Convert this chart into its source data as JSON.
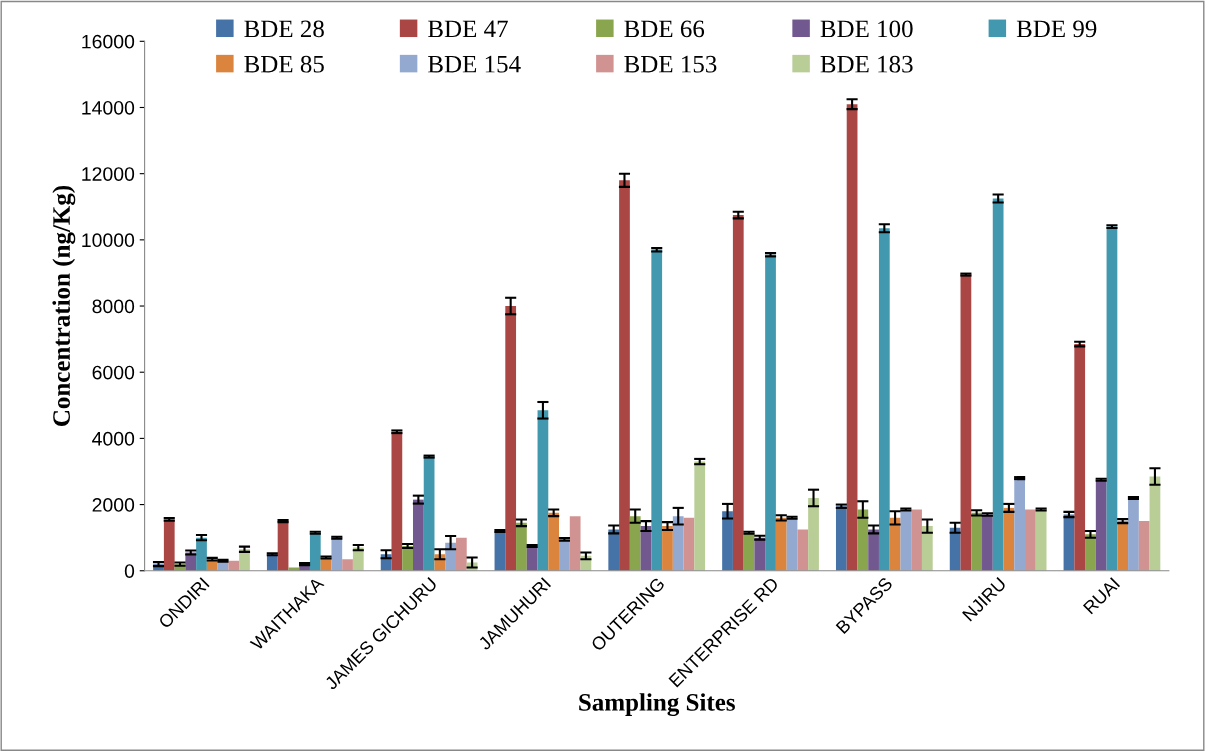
{
  "chart_data": {
    "type": "bar",
    "xlabel": "Sampling Sites",
    "ylabel": "Concentration (ng/Kg)",
    "categories": [
      "ONDIRI",
      "WAITHAKA",
      "JAMES GICHURU",
      "JAMUHURI",
      "OUTERING",
      "ENTERPRISE RD",
      "BYPASS",
      "NJIRU",
      "RUAI"
    ],
    "ylim": [
      0,
      16000
    ],
    "yticks": [
      0,
      2000,
      4000,
      6000,
      8000,
      10000,
      12000,
      14000,
      16000
    ],
    "grid": false,
    "legend": "top",
    "series": [
      {
        "name": "BDE 28",
        "color": "#4572a7",
        "values": [
          200,
          500,
          500,
          1200,
          1250,
          1800,
          1950,
          1300,
          1700
        ],
        "errors": [
          60,
          30,
          120,
          30,
          120,
          220,
          50,
          150,
          80
        ]
      },
      {
        "name": "BDE 47",
        "color": "#aa4643",
        "values": [
          1550,
          1500,
          4200,
          8000,
          11800,
          10750,
          14100,
          8950,
          6850
        ],
        "errors": [
          40,
          30,
          40,
          250,
          200,
          100,
          150,
          30,
          70
        ]
      },
      {
        "name": "BDE 66",
        "color": "#89a54e",
        "values": [
          200,
          100,
          750,
          1450,
          1650,
          1150,
          1850,
          1750,
          1100
        ],
        "errors": [
          50,
          null,
          60,
          100,
          200,
          30,
          250,
          80,
          100
        ]
      },
      {
        "name": "BDE 100",
        "color": "#71588f",
        "values": [
          550,
          200,
          2150,
          750,
          1350,
          1000,
          1250,
          1700,
          2750
        ],
        "errors": [
          60,
          30,
          120,
          30,
          150,
          60,
          120,
          40,
          30
        ]
      },
      {
        "name": "BDE 99",
        "color": "#4198af",
        "values": [
          1000,
          1150,
          3450,
          4850,
          9700,
          9550,
          10350,
          11250,
          10400
        ],
        "errors": [
          80,
          30,
          30,
          250,
          50,
          50,
          120,
          120,
          40
        ]
      },
      {
        "name": "BDE 85",
        "color": "#db843d",
        "values": [
          350,
          400,
          500,
          1750,
          1350,
          1600,
          1600,
          1900,
          1500
        ],
        "errors": [
          40,
          30,
          150,
          100,
          120,
          80,
          200,
          120,
          60
        ]
      },
      {
        "name": "BDE 154",
        "color": "#93a9cf",
        "values": [
          300,
          1000,
          850,
          950,
          1650,
          1600,
          1850,
          2800,
          2200
        ],
        "errors": [
          30,
          30,
          200,
          40,
          250,
          30,
          30,
          30,
          30
        ]
      },
      {
        "name": "BDE 153",
        "color": "#d19392",
        "values": [
          300,
          350,
          1000,
          1650,
          1600,
          1250,
          1850,
          1850,
          1500
        ],
        "errors": [
          null,
          null,
          null,
          null,
          null,
          null,
          null,
          null,
          null
        ]
      },
      {
        "name": "BDE 183",
        "color": "#b9cd96",
        "values": [
          650,
          700,
          250,
          450,
          3300,
          2200,
          1350,
          1850,
          2850
        ],
        "errors": [
          80,
          80,
          150,
          100,
          80,
          250,
          200,
          30,
          250
        ]
      }
    ]
  }
}
